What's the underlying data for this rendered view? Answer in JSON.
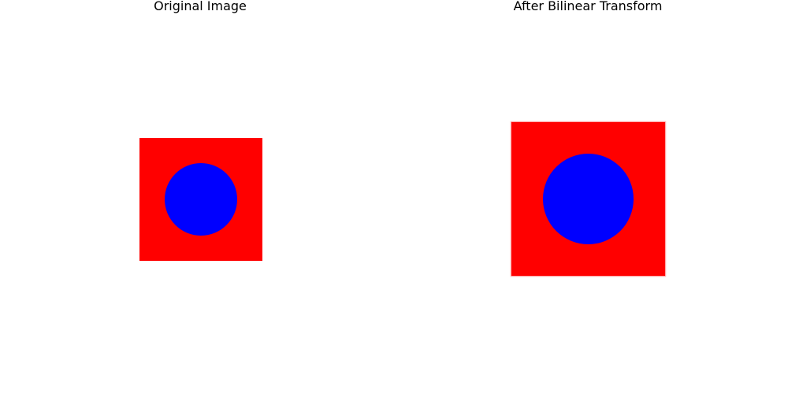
{
  "panels": [
    {
      "title": "Original Image",
      "square_color": "#ff0000",
      "circle_color": "#0000ff"
    },
    {
      "title": "After Bilinear Transform",
      "square_color": "#ff0000",
      "circle_color": "#0000ff"
    }
  ]
}
